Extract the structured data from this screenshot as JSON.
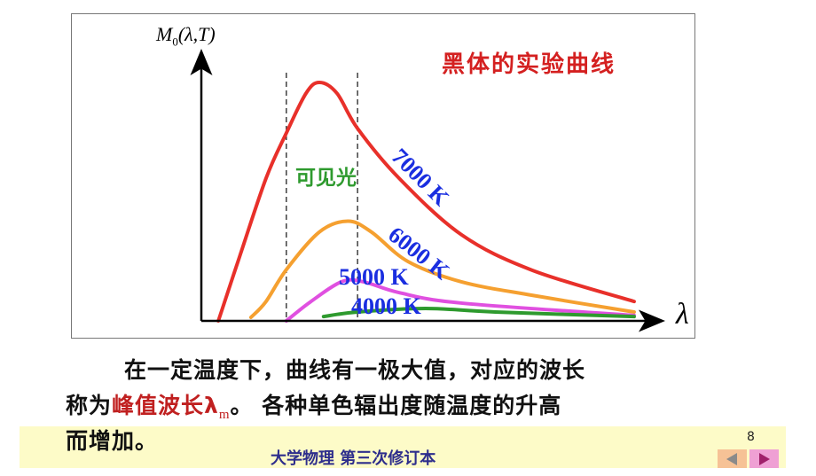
{
  "slide": {
    "title": "黑体的实验曲线",
    "visible_light_label": "可见光",
    "paragraph": {
      "line1": "在一定温度下，曲线有一极大值，对应的波长",
      "line2_prefix": "称为",
      "highlight": "峰值波长λ",
      "highlight_sub": "m",
      "line2_suffix": "。 各种单色辐出度随温度的升高",
      "line3": "而增加。"
    },
    "footer": "大学物理 第三次修订本",
    "page_number": "8",
    "nav": {
      "prev_icon": "triangle-left-icon",
      "next_icon": "triangle-right-icon"
    },
    "colors": {
      "title": "#d42020",
      "series_label": "#1a2ee0",
      "visible_label": "#2e9a2e",
      "footer": "#2e2e8c",
      "band": "#fdfbc8"
    }
  },
  "chart_data": {
    "type": "line",
    "title": "黑体的实验曲线",
    "ylabel": "M",
    "ylabel_sub": "0",
    "ylabel_args": "(λ,T)",
    "xlabel": "λ",
    "xlim": [
      0,
      100
    ],
    "ylim": [
      0,
      100
    ],
    "grid": false,
    "visible_band": [
      18.5,
      34
    ],
    "series": [
      {
        "name": "7000 K",
        "color": "#e8302a",
        "x": [
          3.7,
          8.3,
          14.1,
          18.5,
          22.8,
          25.7,
          29.5,
          34,
          43,
          56.6,
          72,
          94.2
        ],
        "y": [
          0,
          23.7,
          53,
          69.7,
          84.5,
          88.5,
          84.5,
          71.4,
          53,
          32,
          18.8,
          7.2
        ]
      },
      {
        "name": "6000 K",
        "color": "#f5a030",
        "x": [
          10.8,
          14,
          18.5,
          25.7,
          31.9,
          37,
          45,
          56.6,
          72,
          94.2
        ],
        "y": [
          1.3,
          7,
          19,
          33,
          37,
          33,
          22,
          14.5,
          9.5,
          3.3
        ]
      },
      {
        "name": "5000 K",
        "color": "#e050e0",
        "x": [
          18.5,
          23.7,
          30.5,
          35.3,
          43,
          56.6,
          94.2
        ],
        "y": [
          0,
          7,
          14.5,
          14.5,
          10.5,
          6.6,
          2
        ]
      },
      {
        "name": "4000 K",
        "color": "#2e9a2e",
        "x": [
          26.6,
          34,
          48.8,
          64,
          94.2
        ],
        "y": [
          1.6,
          3.3,
          4.6,
          3.3,
          1.6
        ]
      }
    ]
  }
}
